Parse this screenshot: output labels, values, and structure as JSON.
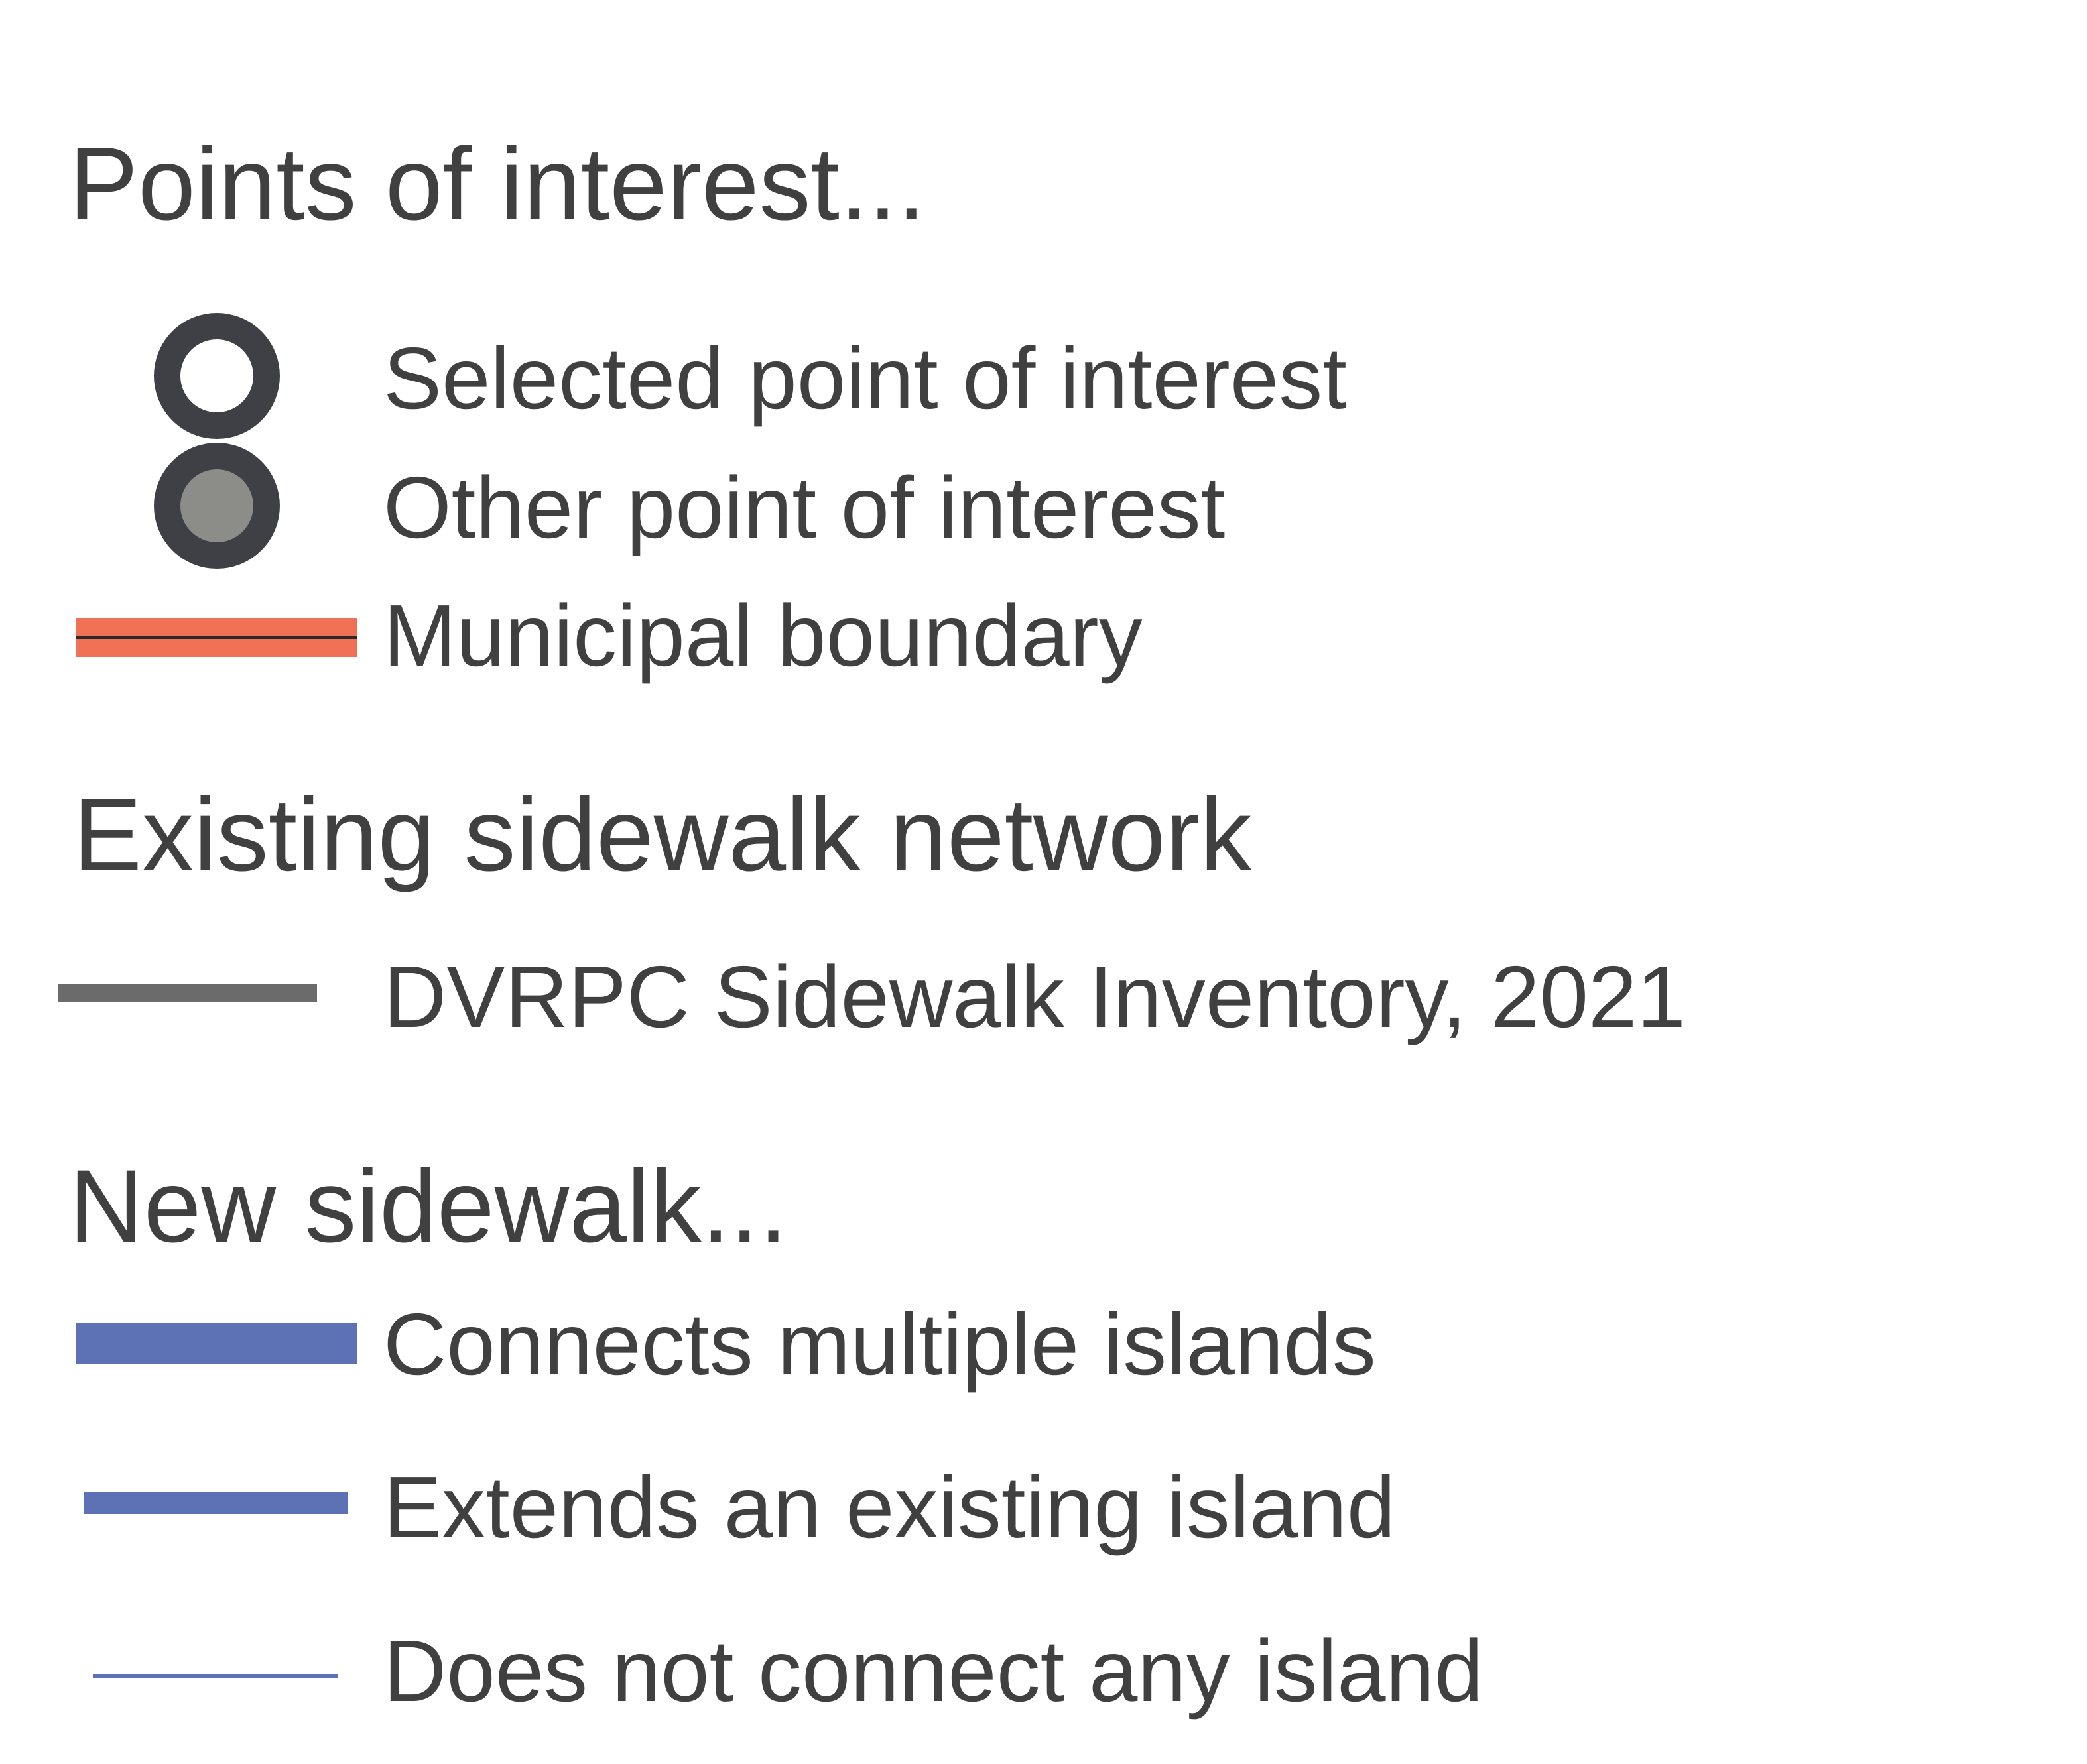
{
  "legend": {
    "poi_section": {
      "heading": "Points of interest...",
      "items": [
        {
          "label": "Selected point of interest",
          "symbol": "circle-hollow-icon",
          "fill": "#ffffff",
          "stroke": "#3f3f46"
        },
        {
          "label": "Other point of interest",
          "symbol": "circle-filled-icon",
          "fill": "#8c8c88",
          "stroke": "#3f3f46"
        },
        {
          "label": "Municipal boundary",
          "symbol": "boundary-line-icon",
          "color": "#f07155",
          "center_line_color": "#2b2b2b"
        }
      ]
    },
    "existing_section": {
      "heading": "Existing sidewalk network",
      "items": [
        {
          "label": "DVRPC Sidewalk Inventory, 2021",
          "symbol": "sidewalk-line-icon",
          "color": "#6b6b6b"
        }
      ]
    },
    "new_section": {
      "heading": "New sidewalk...",
      "items": [
        {
          "label": "Connects multiple islands",
          "symbol": "thick-line-icon",
          "color": "#5d72b4"
        },
        {
          "label": "Extends an existing island",
          "symbol": "medium-line-icon",
          "color": "#5d72b4"
        },
        {
          "label": "Does not connect any island",
          "symbol": "thin-line-icon",
          "color": "#5d72b4"
        }
      ]
    }
  }
}
